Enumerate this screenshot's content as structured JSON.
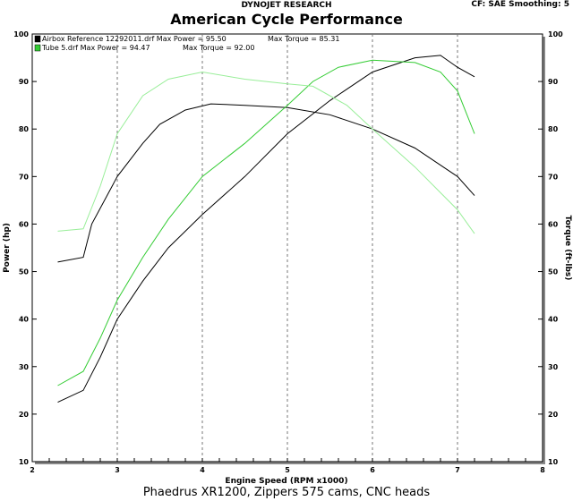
{
  "header": {
    "brand": "DYNOJET RESEARCH",
    "settings": "CF: SAE  Smoothing: 5"
  },
  "footer": "Phaedrus XR1200,  Zippers 575 cams, CNC heads",
  "chart_data": {
    "type": "line",
    "title": "American Cycle Performance",
    "xlabel": "Engine Speed (RPM x1000)",
    "ylabel": "Power (hp)",
    "y2label": "Torque (ft-lbs)",
    "xlim": [
      2,
      8
    ],
    "ylim": [
      10,
      100
    ],
    "xticks": [
      "2",
      "3",
      "4",
      "5",
      "6",
      "7",
      "8"
    ],
    "yticks": [
      "10",
      "20",
      "30",
      "40",
      "50",
      "60",
      "70",
      "80",
      "90",
      "100"
    ],
    "grid": "vertical dashed",
    "legend": [
      {
        "label": "Airbox Reference 12292011.drf Max Power = 95.50",
        "torque": "Max Torque = 85.31",
        "color": "#000000"
      },
      {
        "label": "Tube 5.drf Max Power = 94.47",
        "torque": "Max Torque = 92.00",
        "color": "#33cc33"
      }
    ],
    "legend_placement": "top-left",
    "series": [
      {
        "name": "Airbox Power",
        "color": "#000000",
        "x": [
          2.3,
          2.6,
          2.8,
          3.0,
          3.3,
          3.6,
          4.0,
          4.5,
          5.0,
          5.5,
          6.0,
          6.5,
          6.8,
          7.0,
          7.2
        ],
        "y": [
          22.5,
          25,
          32,
          40,
          48,
          55,
          62,
          70,
          79,
          86,
          92,
          95,
          95.5,
          93,
          91
        ]
      },
      {
        "name": "Airbox Torque",
        "color": "#000000",
        "x": [
          2.3,
          2.6,
          2.7,
          3.0,
          3.3,
          3.5,
          3.8,
          4.1,
          4.5,
          5.0,
          5.5,
          6.0,
          6.5,
          7.0,
          7.2
        ],
        "y": [
          52,
          53,
          60,
          70,
          77,
          81,
          84,
          85.3,
          85,
          84.5,
          83,
          80,
          76,
          70,
          66
        ]
      },
      {
        "name": "Tube 5 Power",
        "color": "#33cc33",
        "x": [
          2.3,
          2.6,
          2.8,
          3.0,
          3.3,
          3.6,
          4.0,
          4.5,
          5.0,
          5.3,
          5.6,
          6.0,
          6.5,
          6.8,
          7.0,
          7.2
        ],
        "y": [
          26,
          29,
          36,
          44,
          53,
          61,
          70,
          77,
          85,
          90,
          93,
          94.5,
          94,
          92,
          88,
          79
        ]
      },
      {
        "name": "Tube 5 Torque",
        "color": "#99ee99",
        "x": [
          2.3,
          2.6,
          2.8,
          3.0,
          3.3,
          3.6,
          4.0,
          4.5,
          5.0,
          5.3,
          5.7,
          6.0,
          6.5,
          7.0,
          7.2
        ],
        "y": [
          58.5,
          59,
          68,
          79,
          87,
          90.5,
          92,
          90.5,
          89.5,
          89,
          85,
          80,
          72,
          63,
          58
        ]
      }
    ]
  }
}
